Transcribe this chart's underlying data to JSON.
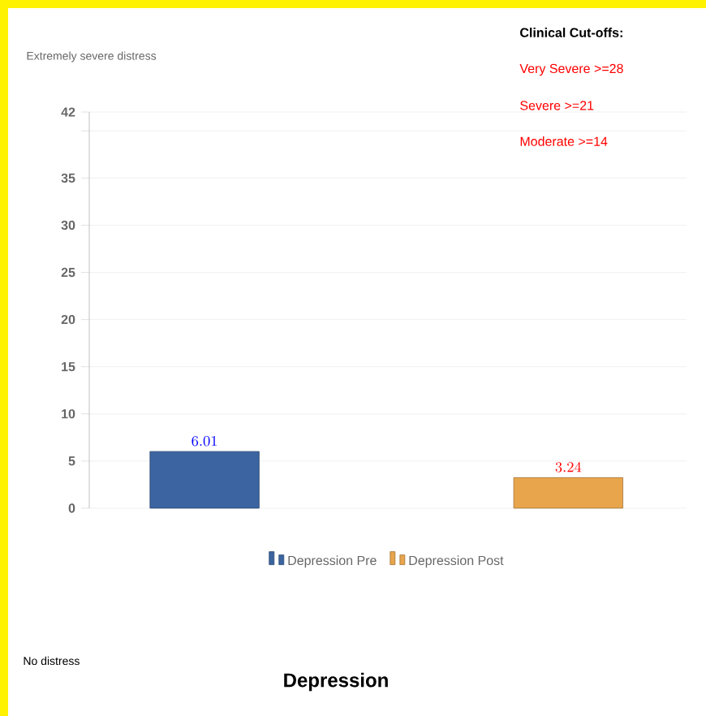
{
  "chart_data": {
    "type": "bar",
    "title": "Depression",
    "categories": [
      null,
      null
    ],
    "series": [
      {
        "name": "Depression Pre",
        "color": "#3b64a0",
        "values": [
          6.01,
          null
        ]
      },
      {
        "name": "Depression Post",
        "color": "#e8a54c",
        "values": [
          null,
          3.24
        ]
      }
    ],
    "ylim": [
      0,
      42
    ],
    "yticks": [
      0,
      5,
      10,
      15,
      20,
      25,
      30,
      35,
      {
        "value": 40,
        "label": null
      },
      42
    ],
    "grid": "y",
    "legend": "bottom",
    "data_labels": true,
    "tick_labels": "y",
    "annotations": [
      "Extremely severe distress",
      "Clinical Cut-offs:",
      "Very Severe >=28",
      "Severe >=21",
      "Moderate >=14",
      "No distress"
    ]
  }
}
